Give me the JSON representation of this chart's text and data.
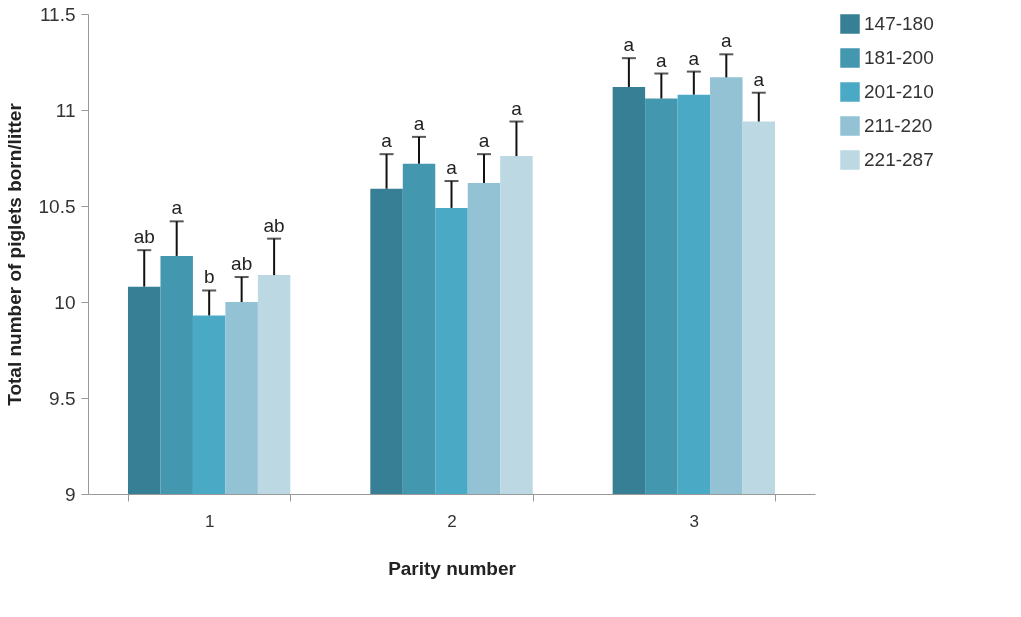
{
  "chart_data": {
    "type": "bar",
    "xlabel": "Parity number",
    "ylabel": "Total  number of piglets born/litter",
    "categories": [
      "1",
      "2",
      "3"
    ],
    "series": [
      {
        "name": "147-180",
        "color": "#367f94",
        "values": [
          10.08,
          10.59,
          11.12
        ],
        "errors": [
          [
            10.08,
            10.27
          ],
          [
            10.59,
            10.77
          ],
          [
            11.12,
            11.27
          ]
        ],
        "value_labels": [
          "ab",
          "a",
          "a"
        ]
      },
      {
        "name": "181-200",
        "color": "#4398b0",
        "values": [
          10.24,
          10.72,
          11.06
        ],
        "errors": [
          [
            10.24,
            10.42
          ],
          [
            10.72,
            10.86
          ],
          [
            11.06,
            11.19
          ]
        ],
        "value_labels": [
          "a",
          "a",
          "a"
        ]
      },
      {
        "name": "201-210",
        "color": "#4aaac6",
        "values": [
          9.93,
          10.49,
          11.08
        ],
        "errors": [
          [
            9.93,
            10.06
          ],
          [
            10.49,
            10.63
          ],
          [
            11.08,
            11.2
          ]
        ],
        "value_labels": [
          "b",
          "a",
          "a"
        ]
      },
      {
        "name": "211-220",
        "color": "#92c2d4",
        "values": [
          10.0,
          10.62,
          11.17
        ],
        "errors": [
          [
            10.0,
            10.13
          ],
          [
            10.62,
            10.77
          ],
          [
            11.17,
            11.29
          ]
        ],
        "value_labels": [
          "ab",
          "a",
          "a"
        ]
      },
      {
        "name": "221-287",
        "color": "#bcd8e3",
        "values": [
          10.14,
          10.76,
          10.94
        ],
        "errors": [
          [
            10.14,
            10.33
          ],
          [
            10.76,
            10.94
          ],
          [
            10.94,
            11.09
          ]
        ],
        "value_labels": [
          "ab",
          "a",
          "a"
        ]
      }
    ],
    "ylim": [
      9,
      11.5
    ],
    "yticks": [
      9,
      9.5,
      10,
      10.5,
      11,
      11.5
    ],
    "grid": false,
    "legend": "right"
  }
}
